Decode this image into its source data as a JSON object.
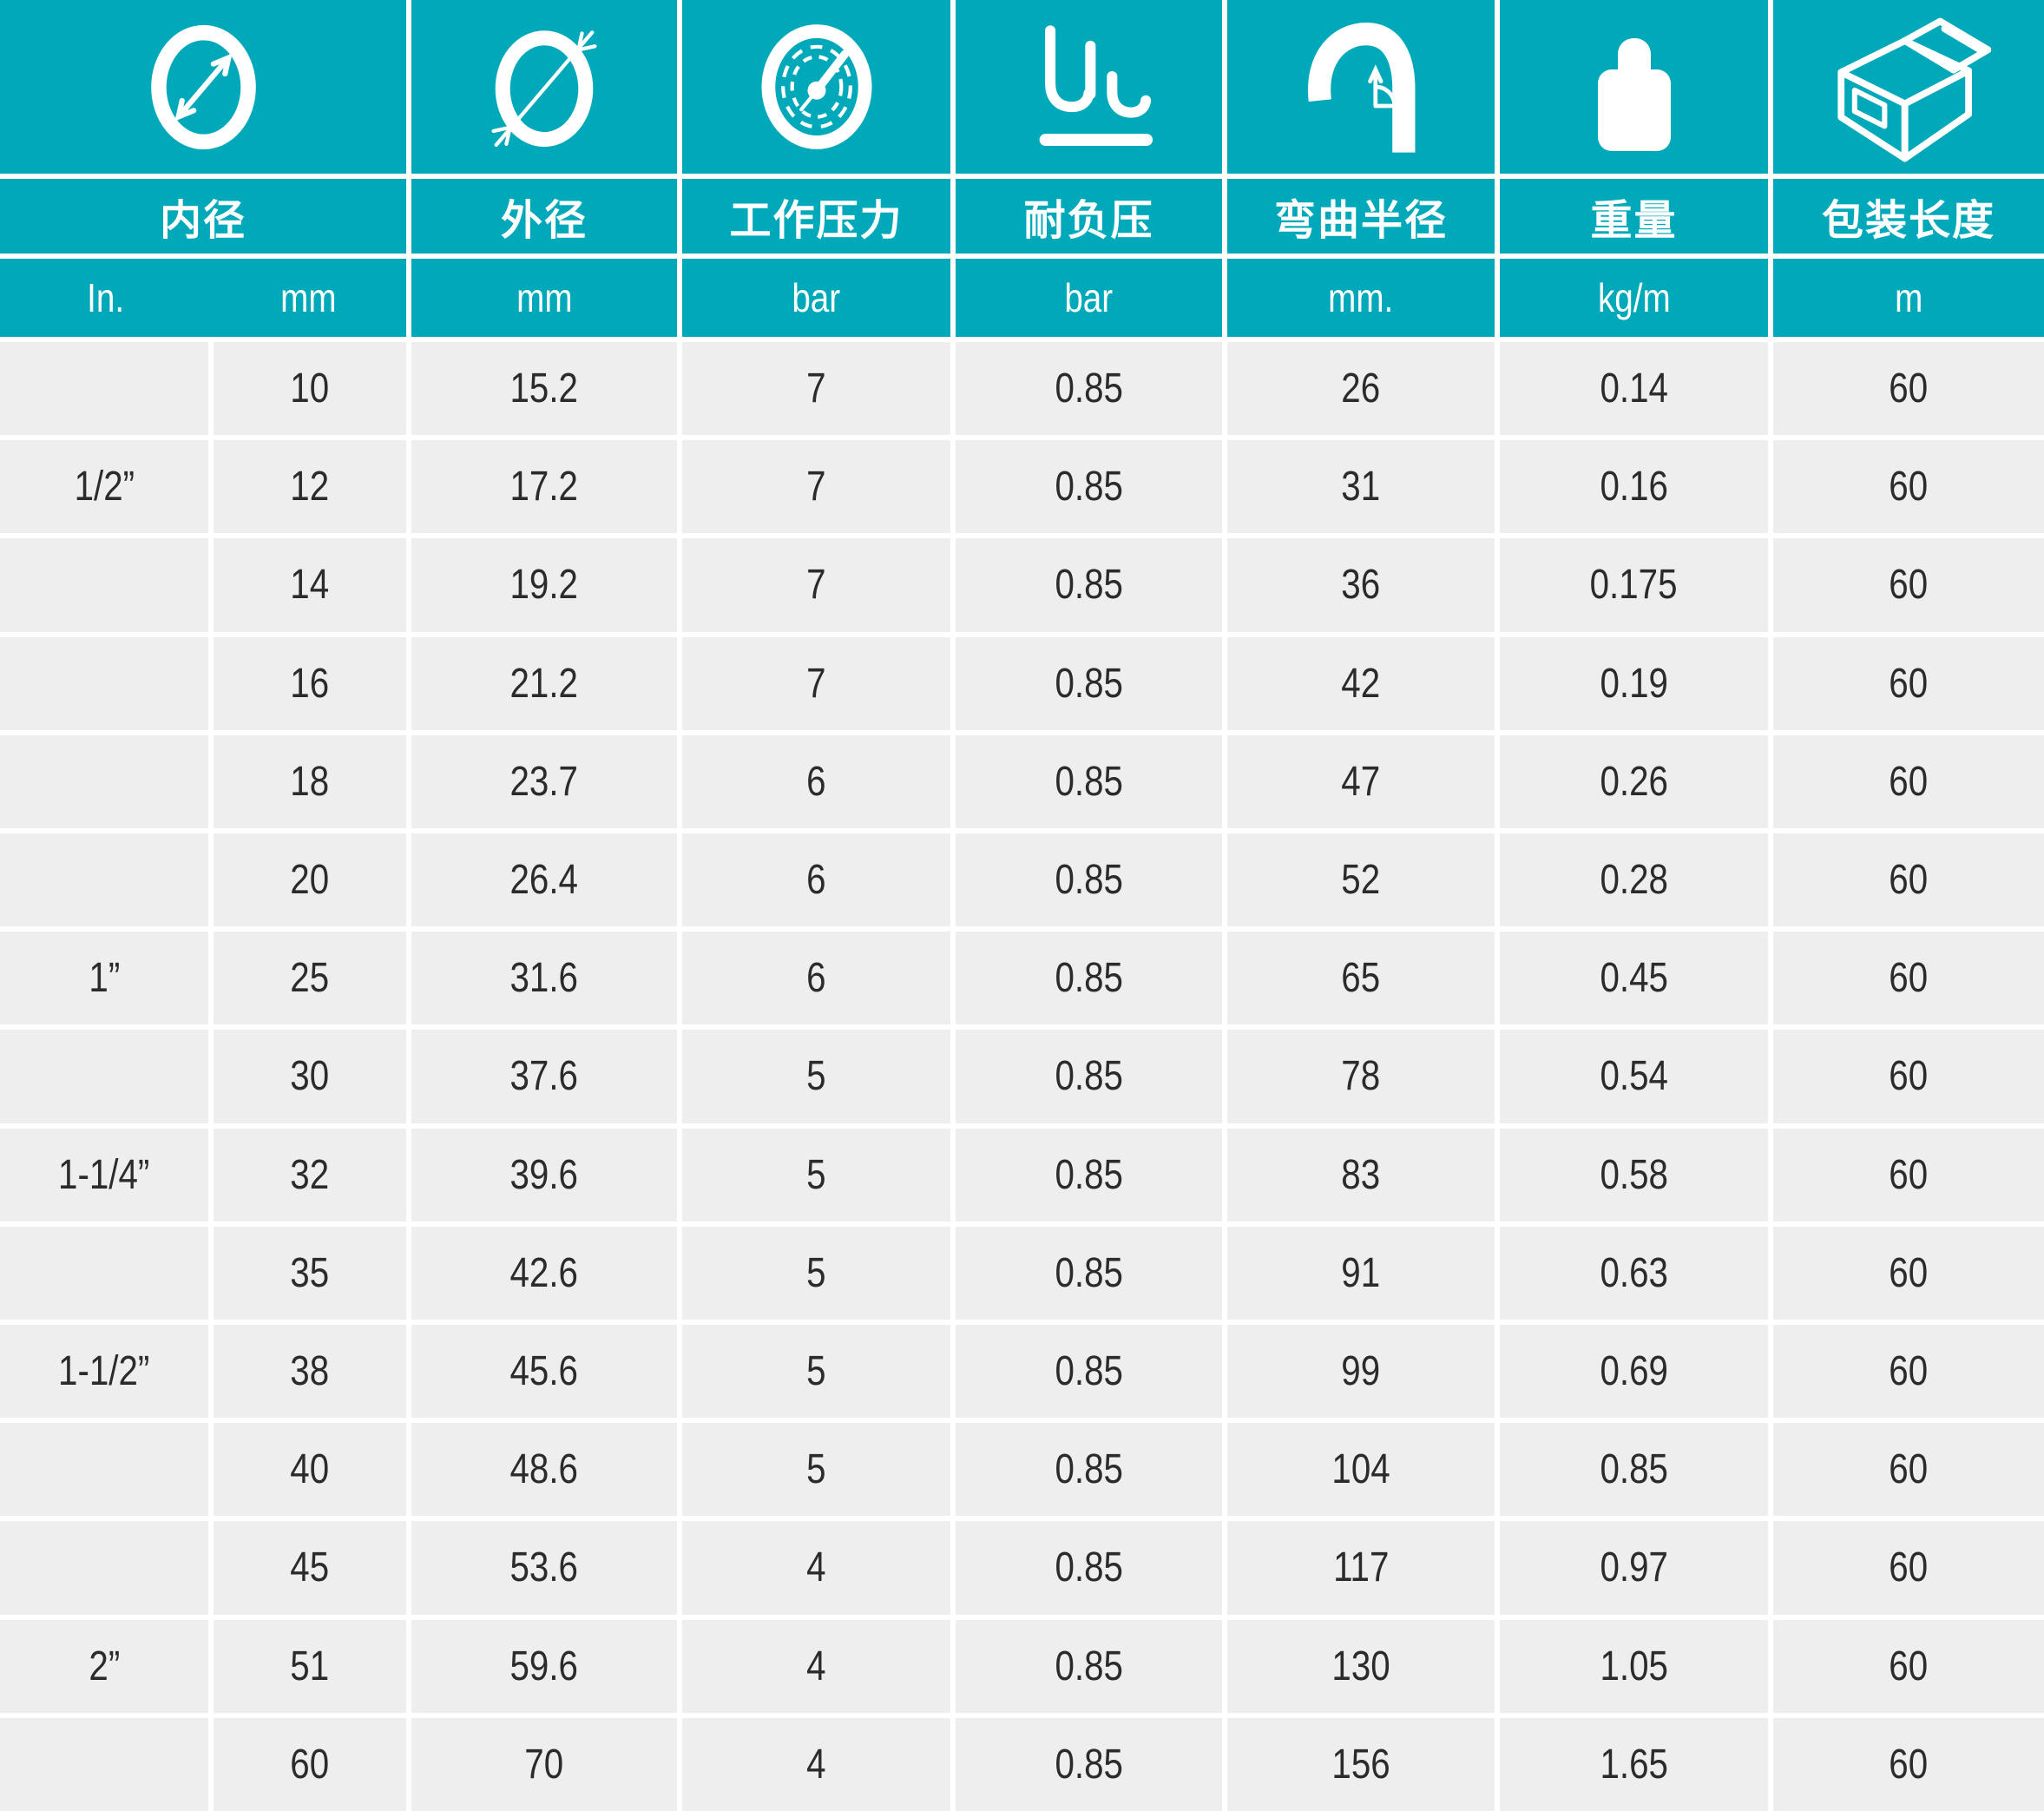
{
  "table": {
    "columns": [
      {
        "key": "inner_diameter",
        "label": "内径",
        "icon": "inner-diameter-icon",
        "units": [
          "In.",
          "mm"
        ]
      },
      {
        "key": "outer_diameter",
        "label": "外径",
        "icon": "outer-diameter-icon",
        "unit": "mm"
      },
      {
        "key": "working_pressure",
        "label": "工作压力",
        "icon": "pressure-gauge-icon",
        "unit": "bar"
      },
      {
        "key": "vacuum_resistance",
        "label": "耐负压",
        "icon": "vacuum-icon",
        "unit": "bar"
      },
      {
        "key": "bend_radius",
        "label": "弯曲半径",
        "icon": "bend-radius-icon",
        "unit": "mm."
      },
      {
        "key": "weight",
        "label": "重量",
        "icon": "weight-icon",
        "unit": "kg/m"
      },
      {
        "key": "packing_length",
        "label": "包装长度",
        "icon": "box-icon",
        "unit": "m"
      }
    ],
    "col_keys": [
      "inch",
      "inner-mm",
      "outer-mm",
      "working-pressure",
      "vacuum",
      "bend-radius",
      "weight",
      "packing-length"
    ],
    "rows": [
      [
        "",
        "10",
        "15.2",
        "7",
        "0.85",
        "26",
        "0.14",
        "60"
      ],
      [
        "1/2”",
        "12",
        "17.2",
        "7",
        "0.85",
        "31",
        "0.16",
        "60"
      ],
      [
        "",
        "14",
        "19.2",
        "7",
        "0.85",
        "36",
        "0.175",
        "60"
      ],
      [
        "",
        "16",
        "21.2",
        "7",
        "0.85",
        "42",
        "0.19",
        "60"
      ],
      [
        "",
        "18",
        "23.7",
        "6",
        "0.85",
        "47",
        "0.26",
        "60"
      ],
      [
        "",
        "20",
        "26.4",
        "6",
        "0.85",
        "52",
        "0.28",
        "60"
      ],
      [
        "1”",
        "25",
        "31.6",
        "6",
        "0.85",
        "65",
        "0.45",
        "60"
      ],
      [
        "",
        "30",
        "37.6",
        "5",
        "0.85",
        "78",
        "0.54",
        "60"
      ],
      [
        "1-1/4”",
        "32",
        "39.6",
        "5",
        "0.85",
        "83",
        "0.58",
        "60"
      ],
      [
        "",
        "35",
        "42.6",
        "5",
        "0.85",
        "91",
        "0.63",
        "60"
      ],
      [
        "1-1/2”",
        "38",
        "45.6",
        "5",
        "0.85",
        "99",
        "0.69",
        "60"
      ],
      [
        "",
        "40",
        "48.6",
        "5",
        "0.85",
        "104",
        "0.85",
        "60"
      ],
      [
        "",
        "45",
        "53.6",
        "4",
        "0.85",
        "117",
        "0.97",
        "60"
      ],
      [
        "2”",
        "51",
        "59.6",
        "4",
        "0.85",
        "130",
        "1.05",
        "60"
      ],
      [
        "",
        "60",
        "70",
        "4",
        "0.85",
        "156",
        "1.65",
        "60"
      ]
    ]
  },
  "colors": {
    "header_teal": "#00A9BA",
    "cell_gray": "#EEEEEE",
    "text_dark": "#2b2b2b",
    "icon_white": "#ffffff"
  }
}
